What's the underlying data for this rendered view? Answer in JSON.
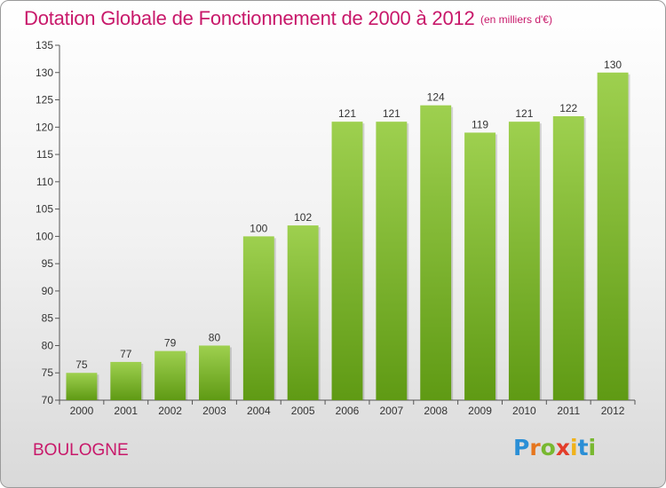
{
  "title": "Dotation Globale de Fonctionnement de 2000 à 2012",
  "subtitle": "(en milliers d'€)",
  "commune": "BOULOGNE",
  "logo": {
    "text": "Proxiti"
  },
  "colors": {
    "title": "#c8186a",
    "bar_light": "#9ed04f",
    "bar_dark": "#5f9a14",
    "axis": "#555555"
  },
  "chart_data": {
    "type": "bar",
    "title": "Dotation Globale de Fonctionnement de 2000 à 2012",
    "subtitle": "(en milliers d'€)",
    "xlabel": "",
    "ylabel": "",
    "categories": [
      "2000",
      "2001",
      "2002",
      "2003",
      "2004",
      "2005",
      "2006",
      "2007",
      "2008",
      "2009",
      "2010",
      "2011",
      "2012"
    ],
    "values": [
      75,
      77,
      79,
      80,
      100,
      102,
      121,
      121,
      124,
      119,
      121,
      122,
      130
    ],
    "data_labels": [
      "75",
      "77",
      "79",
      "80",
      "100",
      "102",
      "121",
      "121",
      "124",
      "119",
      "121",
      "122",
      "130"
    ],
    "ylim": [
      70,
      135
    ],
    "yticks": [
      70,
      75,
      80,
      85,
      90,
      95,
      100,
      105,
      110,
      115,
      120,
      125,
      130,
      135
    ],
    "grid": false,
    "legend": "none"
  }
}
